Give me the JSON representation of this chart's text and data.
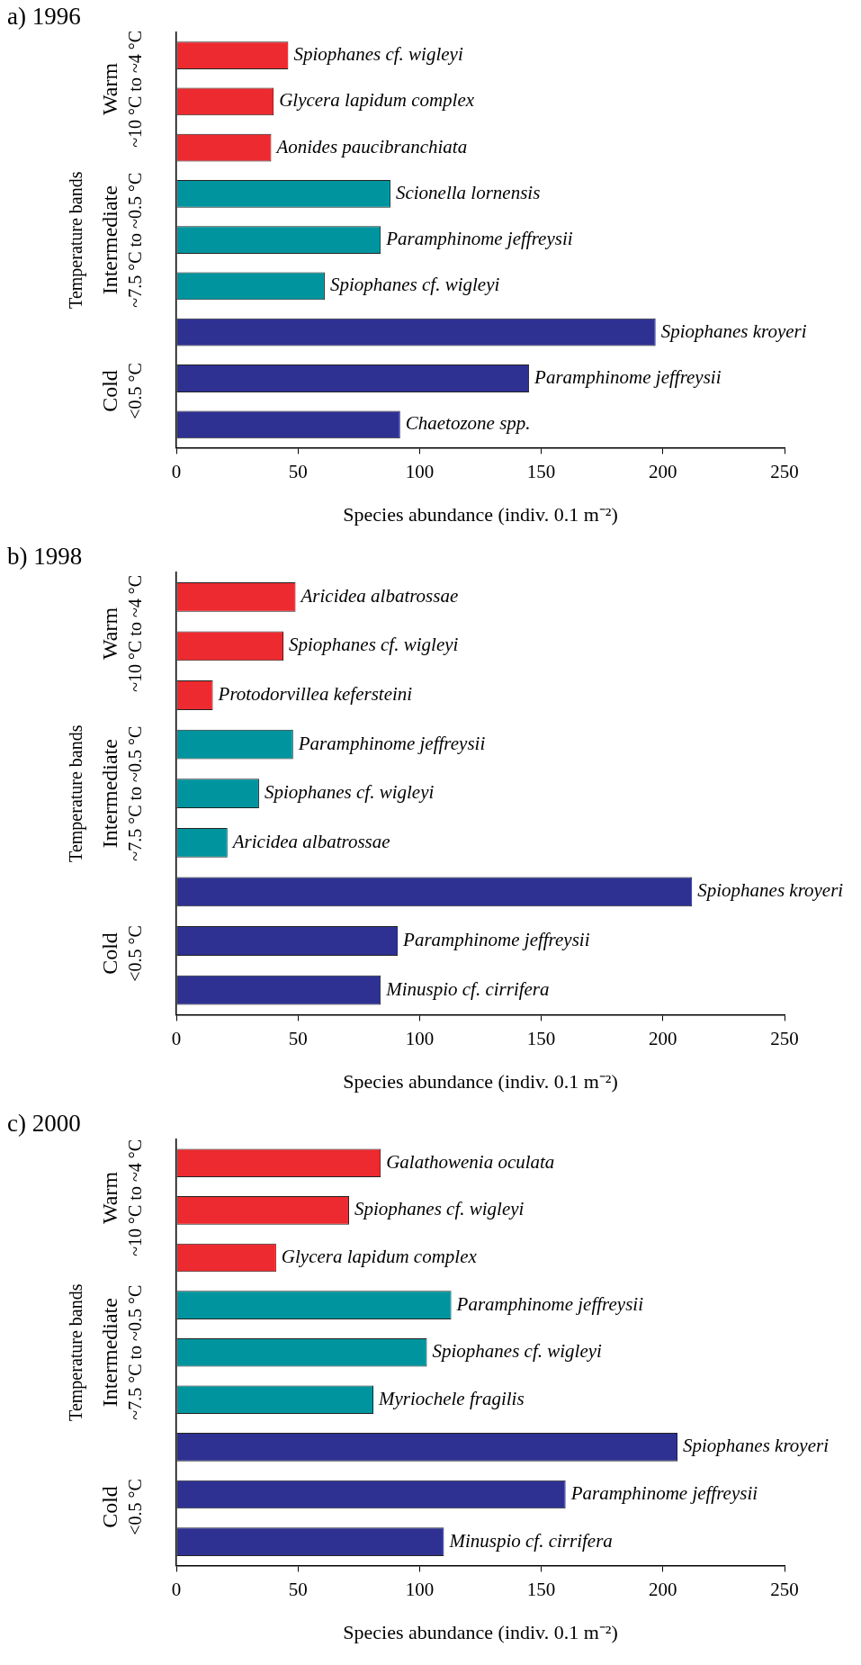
{
  "chart_data": [
    {
      "type": "bar",
      "orientation": "horizontal",
      "title": "a) 1996",
      "xlabel": "Species abundance (indiv. 0.1 m⁻²)",
      "ylabel": "Temperature bands",
      "categories": [
        "Spiophanes cf. wigleyi",
        "Glycera lapidum complex",
        "Aonides paucibranchiata",
        "Scionella lornensis",
        "Paramphinome jeffreysii",
        "Spiophanes cf. wigleyi",
        "Spiophanes kroyeri",
        "Paramphinome jeffreysii",
        "Chaetozone spp."
      ],
      "values": [
        46,
        40,
        39,
        88,
        84,
        61,
        197,
        145,
        92
      ],
      "colors": [
        "#ed2a2f",
        "#ed2a2f",
        "#ed2a2f",
        "#00959e",
        "#00959e",
        "#00959e",
        "#2e3192",
        "#2e3192",
        "#2e3192"
      ],
      "xlim": [
        0,
        250
      ],
      "xticks": [
        0,
        50,
        100,
        150,
        200,
        250
      ],
      "grid": false,
      "legend": false,
      "tick_labels": "x",
      "annotations": [
        "Warm",
        "~10 °C to ~4 °C",
        "Intermediate",
        "~7.5 °C to ~0.5 °C",
        "Cold",
        "<0.5 °C"
      ]
    },
    {
      "type": "bar",
      "orientation": "horizontal",
      "title": "b) 1998",
      "xlabel": "Species abundance (indiv. 0.1 m⁻²)",
      "ylabel": "Temperature bands",
      "categories": [
        "Aricidea albatrossae",
        "Spiophanes cf. wigleyi",
        "Protodorvillea kefersteini",
        "Paramphinome jeffreysii",
        "Spiophanes cf. wigleyi",
        "Aricidea albatrossae",
        "Spiophanes kroyeri",
        "Paramphinome jeffreysii",
        "Minuspio cf. cirrifera"
      ],
      "values": [
        49,
        44,
        15,
        48,
        34,
        21,
        212,
        91,
        84
      ],
      "colors": [
        "#ed2a2f",
        "#ed2a2f",
        "#ed2a2f",
        "#00959e",
        "#00959e",
        "#00959e",
        "#2e3192",
        "#2e3192",
        "#2e3192"
      ],
      "xlim": [
        0,
        250
      ],
      "xticks": [
        0,
        50,
        100,
        150,
        200,
        250
      ],
      "grid": false,
      "legend": false,
      "tick_labels": "x",
      "annotations": [
        "Warm",
        "~10 °C to ~4 °C",
        "Intermediate",
        "~7.5 °C to ~0.5 °C",
        "Cold",
        "<0.5 °C"
      ]
    },
    {
      "type": "bar",
      "orientation": "horizontal",
      "title": "c) 2000",
      "xlabel": "Species abundance (indiv. 0.1 m⁻²)",
      "ylabel": "Temperature bands",
      "categories": [
        "Galathowenia oculata",
        "Spiophanes cf. wigleyi",
        "Glycera lapidum complex",
        "Paramphinome jeffreysii",
        "Spiophanes cf. wigleyi",
        "Myriochele fragilis",
        "Spiophanes kroyeri",
        "Paramphinome jeffreysii",
        "Minuspio cf. cirrifera"
      ],
      "values": [
        84,
        71,
        41,
        113,
        103,
        81,
        206,
        160,
        110
      ],
      "colors": [
        "#ed2a2f",
        "#ed2a2f",
        "#ed2a2f",
        "#00959e",
        "#00959e",
        "#00959e",
        "#2e3192",
        "#2e3192",
        "#2e3192"
      ],
      "xlim": [
        0,
        250
      ],
      "xticks": [
        0,
        50,
        100,
        150,
        200,
        250
      ],
      "grid": false,
      "legend": false,
      "tick_labels": "x",
      "annotations": [
        "Warm",
        "~10 °C to ~4 °C",
        "Intermediate",
        "~7.5 °C to ~0.5 °C",
        "Cold",
        "<0.5 °C"
      ]
    }
  ]
}
